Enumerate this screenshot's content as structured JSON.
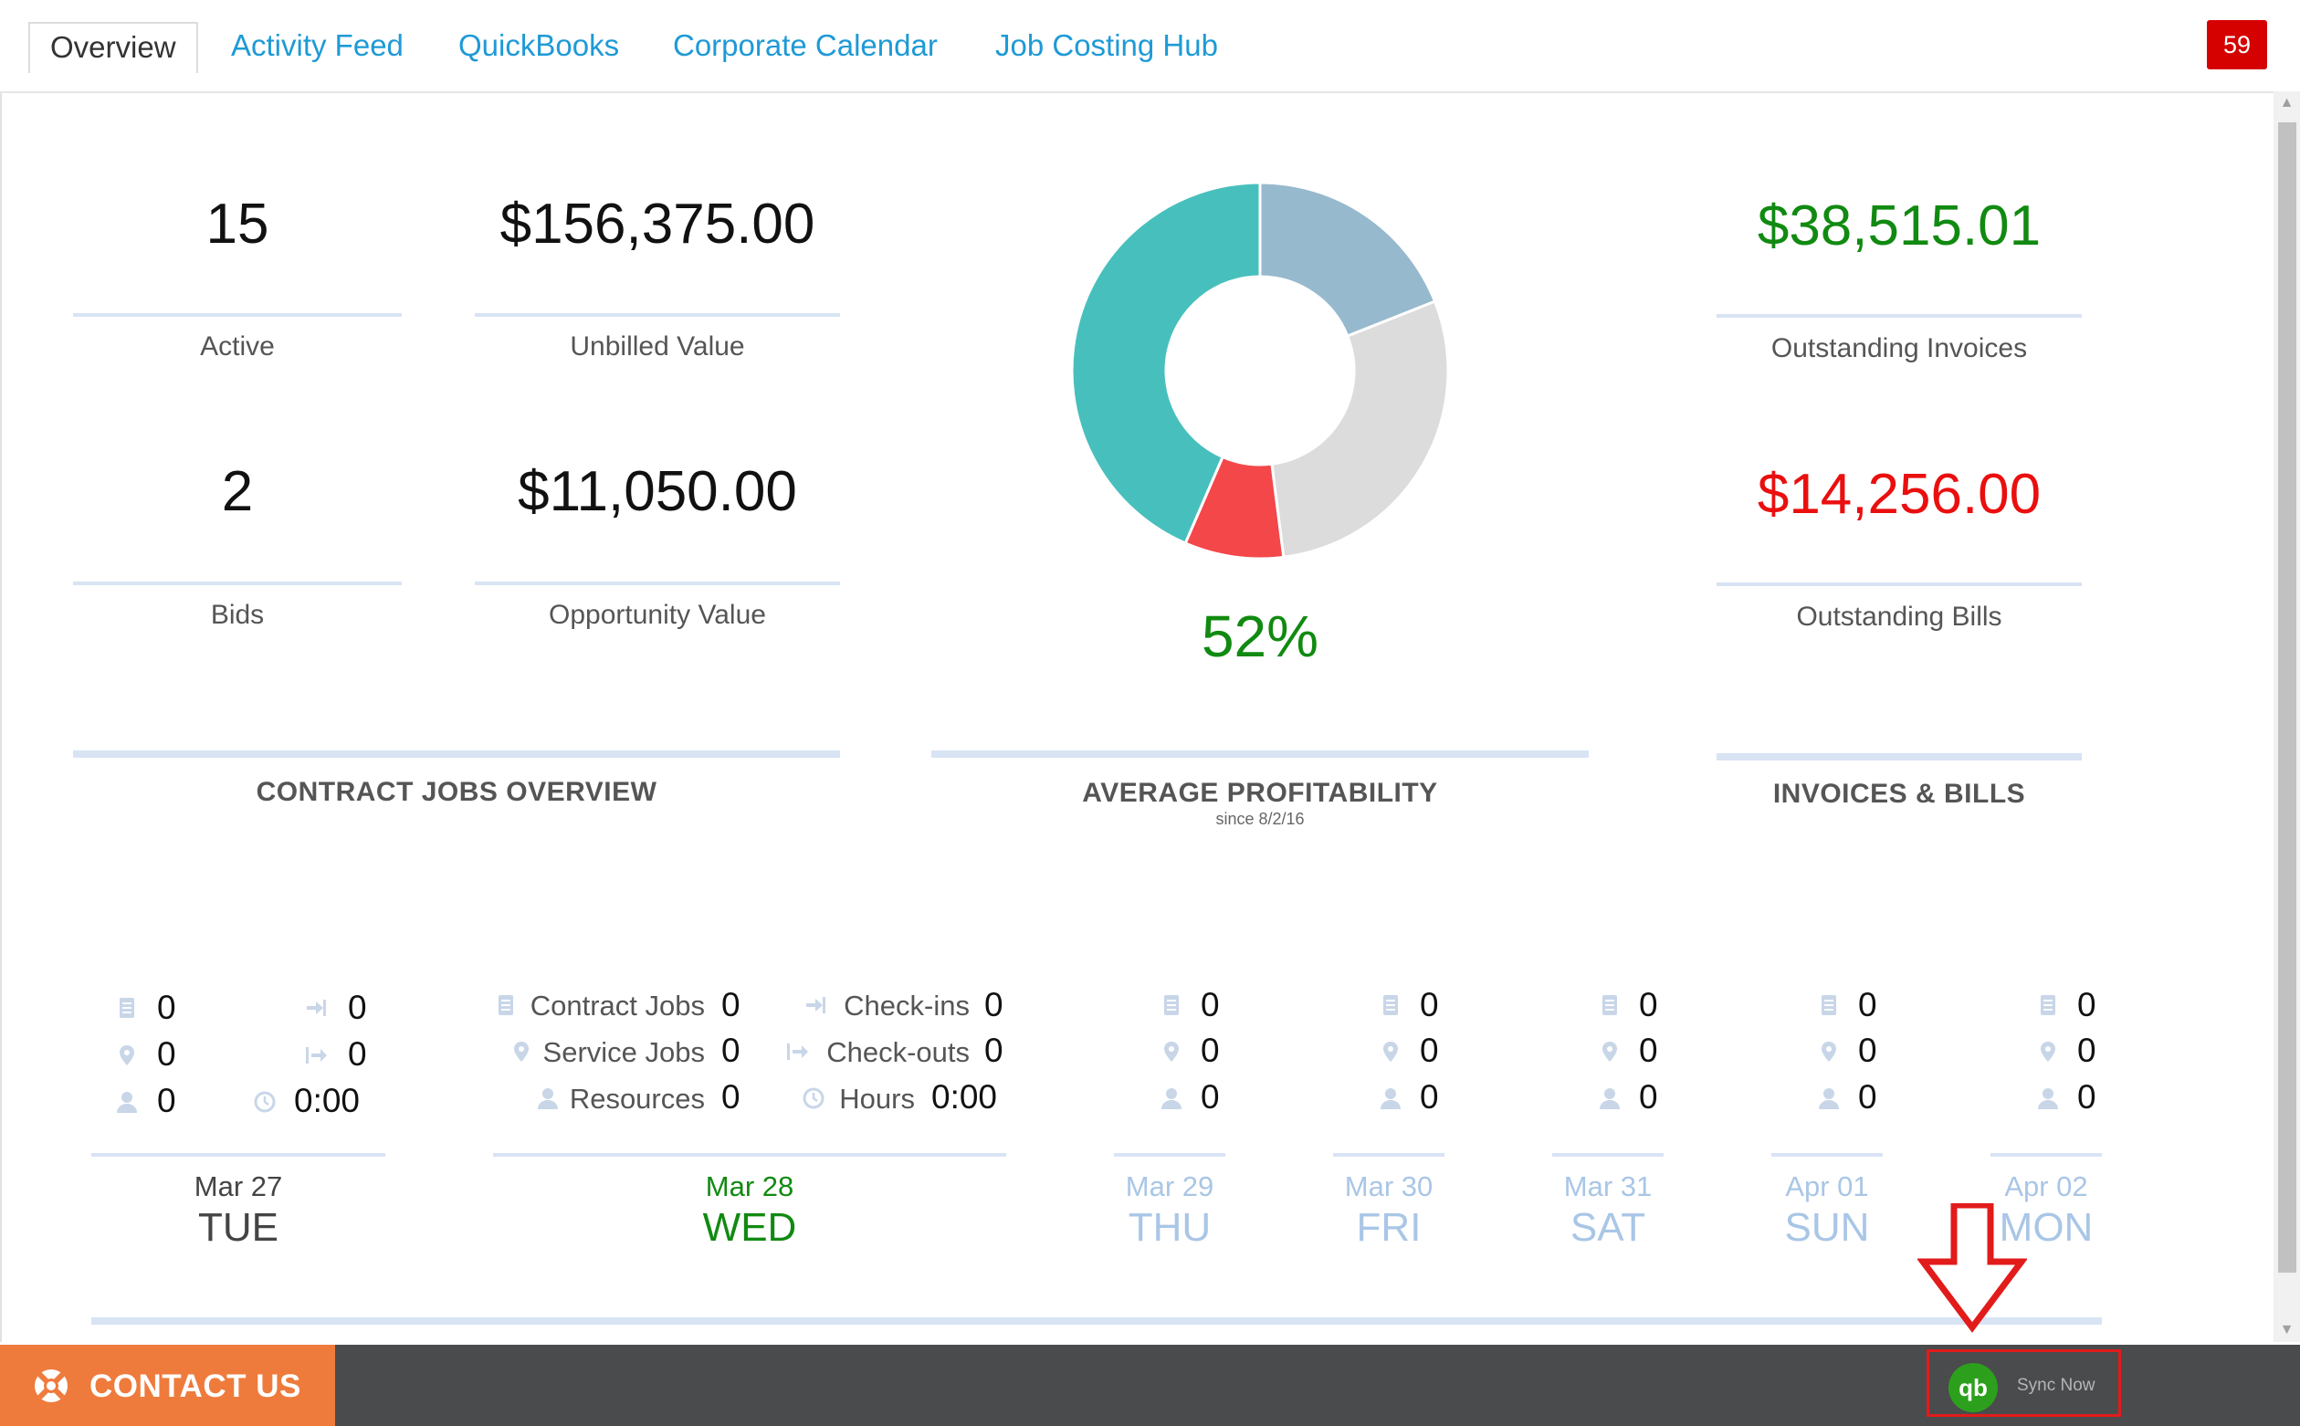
{
  "nav": {
    "tabs": [
      {
        "label": "Overview",
        "active": true
      },
      {
        "label": "Activity Feed"
      },
      {
        "label": "QuickBooks"
      },
      {
        "label": "Corporate Calendar"
      },
      {
        "label": "Job Costing Hub"
      }
    ],
    "notification_count": "59"
  },
  "contract_jobs": {
    "active_count": "15",
    "active_label": "Active",
    "unbilled_value": "$156,375.00",
    "unbilled_label": "Unbilled Value",
    "bids_count": "2",
    "bids_label": "Bids",
    "opportunity_value": "$11,050.00",
    "opportunity_label": "Opportunity Value",
    "title": "CONTRACT JOBS OVERVIEW"
  },
  "profitability": {
    "percent": "52%",
    "title": "AVERAGE PROFITABILITY",
    "subtitle": "since 8/2/16",
    "segments": [
      {
        "fraction": 0.19,
        "color": "#97b9cd"
      },
      {
        "fraction": 0.29,
        "color": "#dcdcdc"
      },
      {
        "fraction": 0.085,
        "color": "#f4474a"
      },
      {
        "fraction": 0.435,
        "color": "#47c0bd"
      }
    ]
  },
  "invoices_bills": {
    "outstanding_invoices": "$38,515.01",
    "outstanding_invoices_label": "Outstanding Invoices",
    "outstanding_bills": "$14,256.00",
    "outstanding_bills_label": "Outstanding Bills",
    "title": "INVOICES & BILLS",
    "colors": {
      "invoices": "#118a11",
      "bills": "#ea0f0f"
    }
  },
  "calendar": {
    "today_labels": {
      "contract_jobs": "Contract Jobs",
      "service_jobs": "Service Jobs",
      "resources": "Resources",
      "checkins": "Check-ins",
      "checkouts": "Check-outs",
      "hours": "Hours"
    },
    "days": [
      {
        "date": "Mar 27",
        "day": "TUE",
        "contract_jobs": "0",
        "service_jobs": "0",
        "resources": "0",
        "checkins": "0",
        "checkouts": "0",
        "hours": "0:00"
      },
      {
        "date": "Mar 28",
        "day": "WED",
        "contract_jobs": "0",
        "service_jobs": "0",
        "resources": "0",
        "checkins": "0",
        "checkouts": "0",
        "hours": "0:00"
      },
      {
        "date": "Mar 29",
        "day": "THU",
        "contract_jobs": "0",
        "service_jobs": "0",
        "resources": "0"
      },
      {
        "date": "Mar 30",
        "day": "FRI",
        "contract_jobs": "0",
        "service_jobs": "0",
        "resources": "0"
      },
      {
        "date": "Mar 31",
        "day": "SAT",
        "contract_jobs": "0",
        "service_jobs": "0",
        "resources": "0"
      },
      {
        "date": "Apr 01",
        "day": "SUN",
        "contract_jobs": "0",
        "service_jobs": "0",
        "resources": "0"
      },
      {
        "date": "Apr 02",
        "day": "MON",
        "contract_jobs": "0",
        "service_jobs": "0",
        "resources": "0"
      }
    ]
  },
  "footer": {
    "contact_label": "CONTACT US",
    "sync_label": "Sync Now",
    "qb_logo": "qb",
    "accent_color": "#ee7b3c"
  }
}
